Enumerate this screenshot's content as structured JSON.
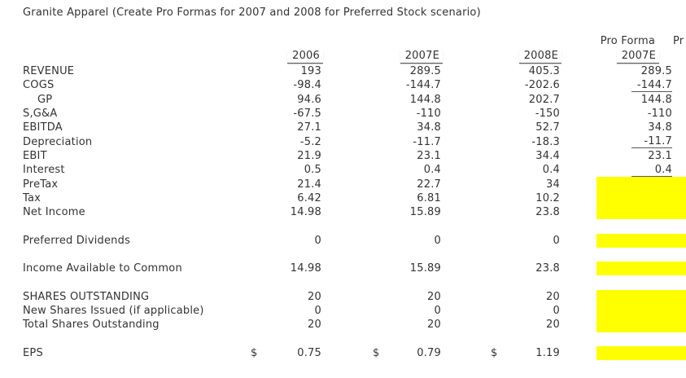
{
  "title": "Granite Apparel (Create Pro Formas for 2007 and 2008 for Preferred Stock scenario)",
  "colors": {
    "highlight": "#ffff00",
    "text": "#333333",
    "grid_line": "#595959"
  },
  "table": {
    "pro_forma_label_1": "Pro Forma",
    "pro_forma_label_2_clipped": "Pr",
    "currency_symbol": "$",
    "year_headers": {
      "c2006": "2006",
      "c2007e": "2007E",
      "c2008e": "2008E",
      "pf2007e": "2007E"
    },
    "rows": [
      {
        "label": "REVENUE",
        "c2006": "193",
        "c2007e": "289.5",
        "c2008e": "405.3",
        "pf2007e": "289.5"
      },
      {
        "label": "COGS",
        "c2006": "-98.4",
        "c2007e": "-144.7",
        "c2008e": "-202.6",
        "pf2007e": "-144.7",
        "pf_underline": true
      },
      {
        "label": "GP",
        "indent": true,
        "c2006": "94.6",
        "c2007e": "144.8",
        "c2008e": "202.7",
        "pf2007e": "144.8"
      },
      {
        "label": "S,G&A",
        "c2006": "-67.5",
        "c2007e": "-110",
        "c2008e": "-150",
        "pf2007e": "-110"
      },
      {
        "label": "EBITDA",
        "c2006": "27.1",
        "c2007e": "34.8",
        "c2008e": "52.7",
        "pf2007e": "34.8"
      },
      {
        "label": "Depreciation",
        "c2006": "-5.2",
        "c2007e": "-11.7",
        "c2008e": "-18.3",
        "pf2007e": "-11.7",
        "pf_underline": true
      },
      {
        "label": "EBIT",
        "c2006": "21.9",
        "c2007e": "23.1",
        "c2008e": "34.4",
        "pf2007e": "23.1"
      },
      {
        "label": "Interest",
        "c2006": "0.5",
        "c2007e": "0.4",
        "c2008e": "0.4",
        "pf2007e": "0.4",
        "pf_underline": true
      },
      {
        "label": "PreTax",
        "c2006": "21.4",
        "c2007e": "22.7",
        "c2008e": "34",
        "pf2007e": "",
        "pf_highlight": true
      },
      {
        "label": "Tax",
        "c2006": "6.42",
        "c2007e": "6.81",
        "c2008e": "10.2",
        "pf2007e": "",
        "pf_highlight": true
      },
      {
        "label": "Net Income",
        "c2006": "14.98",
        "c2007e": "15.89",
        "c2008e": "23.8",
        "pf2007e": "",
        "pf_highlight": true
      },
      {
        "blank": true
      },
      {
        "label": "Preferred Dividends",
        "c2006": "0",
        "c2007e": "0",
        "c2008e": "0",
        "pf2007e": "",
        "pf_highlight": true
      },
      {
        "blank": true
      },
      {
        "label": "Income Available to Common",
        "c2006": "14.98",
        "c2007e": "15.89",
        "c2008e": "23.8",
        "pf2007e": "",
        "pf_highlight": true
      },
      {
        "blank": true
      },
      {
        "label": "SHARES OUTSTANDING",
        "c2006": "20",
        "c2007e": "20",
        "c2008e": "20",
        "pf2007e": "",
        "pf_highlight": true
      },
      {
        "label": "New Shares Issued (if applicable)",
        "c2006": "0",
        "c2007e": "0",
        "c2008e": "0",
        "pf2007e": "",
        "pf_highlight": true
      },
      {
        "label": "Total Shares Outstanding",
        "c2006": "20",
        "c2007e": "20",
        "c2008e": "20",
        "pf2007e": "",
        "pf_highlight": true
      },
      {
        "blank": true
      },
      {
        "label": "EPS",
        "currency": true,
        "c2006": "0.75",
        "c2007e": "0.79",
        "c2008e": "1.19",
        "pf2007e": "",
        "pf_highlight": true
      }
    ]
  }
}
